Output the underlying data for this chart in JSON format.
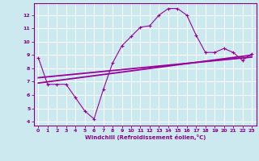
{
  "zigzag_x": [
    0,
    1,
    2,
    3,
    4,
    5,
    6,
    7,
    8,
    9,
    10,
    11,
    12,
    13,
    14,
    15,
    16,
    17,
    18,
    19,
    20,
    21,
    22,
    23
  ],
  "zigzag_y": [
    8.8,
    6.8,
    6.8,
    6.8,
    5.8,
    4.8,
    4.2,
    6.4,
    8.4,
    9.7,
    10.4,
    11.1,
    11.2,
    12.0,
    12.5,
    12.5,
    12.0,
    10.5,
    9.2,
    9.2,
    9.5,
    9.2,
    8.6,
    9.1
  ],
  "trend1_x": [
    0,
    23
  ],
  "trend1_y": [
    6.9,
    9.0
  ],
  "trend2_x": [
    0,
    23
  ],
  "trend2_y": [
    7.3,
    8.85
  ],
  "line_color": "#990099",
  "bg_color": "#cce9f0",
  "grid_color": "#b0d8e4",
  "axis_color": "#880088",
  "xlabel": "Windchill (Refroidissement éolien,°C)",
  "xlim": [
    -0.5,
    23.5
  ],
  "ylim": [
    3.7,
    12.9
  ],
  "xticks": [
    0,
    1,
    2,
    3,
    4,
    5,
    6,
    7,
    8,
    9,
    10,
    11,
    12,
    13,
    14,
    15,
    16,
    17,
    18,
    19,
    20,
    21,
    22,
    23
  ],
  "yticks": [
    4,
    5,
    6,
    7,
    8,
    9,
    10,
    11,
    12
  ]
}
